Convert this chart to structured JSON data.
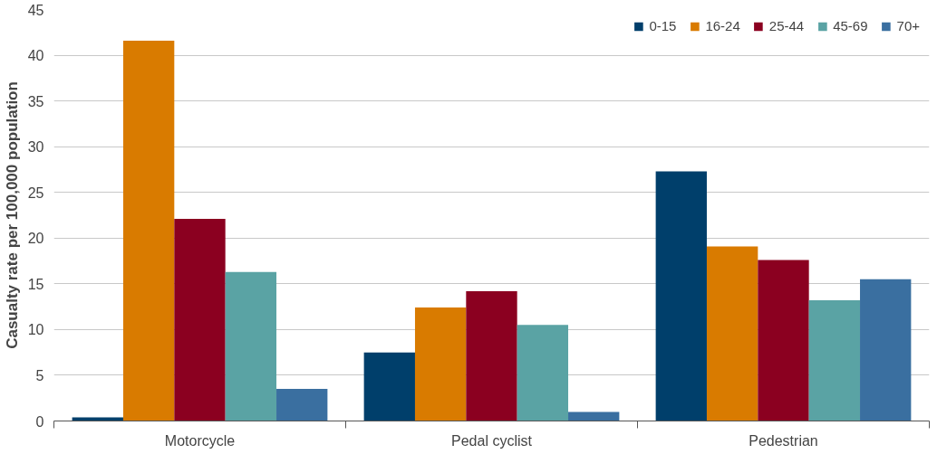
{
  "chart_data": {
    "type": "bar",
    "ylabel": "Casualty rate per 100,000 population",
    "categories": [
      "Motorcycle",
      "Pedal cyclist",
      "Pedestrian"
    ],
    "series": [
      {
        "name": "0-15",
        "color": "#003f6b",
        "values": [
          0.4,
          7.5,
          27.3
        ]
      },
      {
        "name": "16-24",
        "color": "#d97b00",
        "values": [
          41.6,
          12.4,
          19.1
        ]
      },
      {
        "name": "25-44",
        "color": "#8b0020",
        "values": [
          22.1,
          14.2,
          17.6
        ]
      },
      {
        "name": "45-69",
        "color": "#5aa3a4",
        "values": [
          16.3,
          10.5,
          13.2
        ]
      },
      {
        "name": "70+",
        "color": "#3a6fa0",
        "values": [
          3.5,
          1.0,
          15.5
        ]
      }
    ],
    "ylim": [
      0,
      45
    ],
    "yticks": [
      0,
      5,
      10,
      15,
      20,
      25,
      30,
      35,
      40,
      45
    ],
    "grid": "y",
    "legend": "top right"
  }
}
